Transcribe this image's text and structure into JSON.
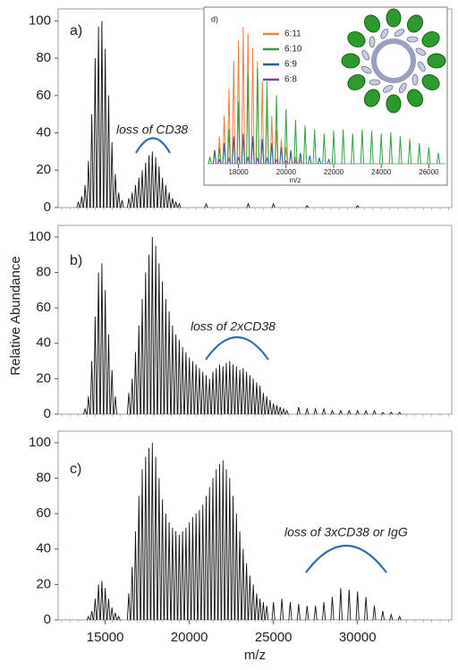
{
  "chart_data": [
    {
      "type": "spectrum",
      "panel_label": "a)",
      "annotation": "loss of CD38",
      "color": "#111111",
      "xlim": [
        12200,
        35600
      ],
      "ylim": [
        0,
        104
      ],
      "yticks": [
        0,
        20,
        40,
        60,
        80,
        100
      ],
      "x": [
        13400,
        13600,
        13800,
        14000,
        14200,
        14400,
        14600,
        14800,
        15000,
        15200,
        15400,
        15600,
        15800,
        16000,
        16400,
        16600,
        16800,
        17000,
        17200,
        17400,
        17600,
        17800,
        18000,
        18200,
        18400,
        18600,
        18800,
        19000,
        19200,
        19400,
        21000,
        23500,
        25000,
        27000,
        30000
      ],
      "values": [
        3,
        6,
        12,
        25,
        50,
        80,
        97,
        100,
        85,
        60,
        35,
        18,
        8,
        4,
        5,
        8,
        12,
        16,
        20,
        24,
        28,
        30,
        27,
        22,
        16,
        12,
        8,
        5,
        3,
        2,
        2,
        2,
        2,
        1,
        1
      ]
    },
    {
      "type": "spectrum",
      "panel_label": "b)",
      "annotation": "loss of 2xCD38",
      "y_label": "Relative Abundance",
      "color": "#111111",
      "xlim": [
        12200,
        35600
      ],
      "ylim": [
        0,
        104
      ],
      "yticks": [
        0,
        20,
        40,
        60,
        80,
        100
      ],
      "x": [
        13800,
        14000,
        14200,
        14400,
        14600,
        14800,
        15000,
        15200,
        15400,
        15600,
        16400,
        16600,
        16800,
        17000,
        17200,
        17400,
        17600,
        17800,
        18000,
        18200,
        18400,
        18600,
        18800,
        19000,
        19200,
        19400,
        19600,
        19800,
        20000,
        20200,
        20400,
        20600,
        20800,
        21000,
        21200,
        21400,
        21600,
        21800,
        22000,
        22200,
        22400,
        22600,
        22800,
        23000,
        23200,
        23400,
        23600,
        23800,
        24000,
        24200,
        24400,
        24600,
        24800,
        25000,
        25200,
        25400,
        25600,
        25800,
        26500,
        27000,
        27500,
        28000,
        28500,
        29000,
        29500,
        30000,
        30500,
        31000,
        31500,
        32000,
        32500
      ],
      "values": [
        3,
        10,
        30,
        55,
        80,
        85,
        70,
        45,
        25,
        10,
        12,
        20,
        35,
        50,
        65,
        80,
        90,
        100,
        95,
        85,
        75,
        65,
        58,
        50,
        45,
        42,
        38,
        35,
        32,
        30,
        28,
        26,
        24,
        22,
        20,
        24,
        26,
        28,
        27,
        29,
        30,
        28,
        27,
        25,
        26,
        24,
        22,
        20,
        18,
        16,
        12,
        10,
        8,
        6,
        5,
        4,
        3,
        2,
        4,
        3,
        3,
        3,
        2,
        2,
        2,
        2,
        2,
        2,
        1,
        1,
        1
      ]
    },
    {
      "type": "spectrum",
      "panel_label": "c)",
      "annotation": "loss of 3xCD38 or IgG",
      "x_label": "m/z",
      "color": "#111111",
      "xlim": [
        12200,
        35600
      ],
      "ylim": [
        0,
        104
      ],
      "yticks": [
        0,
        20,
        40,
        60,
        80,
        100
      ],
      "xticks": [
        15000,
        20000,
        25000,
        30000
      ],
      "x": [
        14000,
        14200,
        14400,
        14600,
        14800,
        15000,
        15200,
        15400,
        15600,
        15800,
        16400,
        16600,
        16800,
        17000,
        17200,
        17400,
        17600,
        17800,
        18000,
        18200,
        18400,
        18600,
        18800,
        19000,
        19200,
        19400,
        19600,
        19800,
        20000,
        20200,
        20400,
        20600,
        20800,
        21000,
        21200,
        21400,
        21600,
        21800,
        22000,
        22200,
        22400,
        22600,
        22800,
        23000,
        23200,
        23400,
        23600,
        23800,
        24000,
        24200,
        24400,
        24600,
        25000,
        25500,
        26000,
        26500,
        27000,
        27500,
        28000,
        28500,
        29000,
        29500,
        30000,
        30500,
        31000,
        31500,
        32000,
        32500
      ],
      "values": [
        2,
        5,
        12,
        20,
        22,
        18,
        12,
        7,
        4,
        2,
        15,
        30,
        50,
        70,
        85,
        92,
        97,
        100,
        92,
        80,
        68,
        60,
        55,
        52,
        50,
        48,
        50,
        52,
        55,
        58,
        60,
        62,
        65,
        70,
        75,
        80,
        85,
        88,
        90,
        85,
        80,
        70,
        60,
        50,
        40,
        32,
        25,
        20,
        15,
        12,
        10,
        8,
        10,
        12,
        10,
        9,
        8,
        8,
        10,
        13,
        18,
        17,
        16,
        13,
        8,
        5,
        3,
        2
      ]
    },
    {
      "type": "spectrum",
      "panel_label": "d)",
      "x_label": "m/z",
      "xlim": [
        16700,
        26700
      ],
      "ylim": [
        0,
        100
      ],
      "xticks": [
        18000,
        20000,
        22000,
        24000,
        26000
      ],
      "series": [
        {
          "name": "6:11",
          "color": "#f08040",
          "x": [
            16800,
            17000,
            17200,
            17400,
            17600,
            17800,
            18000,
            18200,
            18400,
            18600,
            18800,
            19000,
            19200,
            19400,
            19600,
            19800,
            20000,
            20200,
            20400,
            20600
          ],
          "values": [
            5,
            10,
            20,
            35,
            55,
            75,
            90,
            100,
            95,
            85,
            75,
            60,
            45,
            35,
            25,
            18,
            12,
            8,
            5,
            3
          ]
        },
        {
          "name": "6:10",
          "color": "#30a040",
          "x": [
            16800,
            17200,
            17600,
            18000,
            18400,
            18800,
            19200,
            19600,
            20000,
            20400,
            20800,
            21200,
            21600,
            22000,
            22400,
            22800,
            23200,
            23600,
            24000,
            24400,
            24800,
            25200,
            25600,
            26000,
            26400
          ],
          "values": [
            5,
            12,
            25,
            45,
            65,
            70,
            60,
            50,
            40,
            32,
            28,
            25,
            22,
            24,
            25,
            22,
            25,
            24,
            22,
            23,
            20,
            18,
            15,
            12,
            8
          ]
        },
        {
          "name": "6:9",
          "color": "#2060a0",
          "x": [
            17000,
            17400,
            17800,
            18200,
            18600,
            19000,
            19400,
            19800,
            20200,
            20600,
            21000,
            21400,
            21800
          ],
          "values": [
            10,
            15,
            20,
            22,
            20,
            18,
            15,
            12,
            10,
            8,
            6,
            4,
            3
          ]
        },
        {
          "name": "6:8",
          "color": "#8040a0",
          "x": [
            17200,
            17600,
            18000,
            18400,
            18800,
            19200,
            19600,
            20000,
            20400
          ],
          "values": [
            3,
            4,
            5,
            5,
            4,
            4,
            3,
            2,
            2
          ]
        }
      ]
    }
  ]
}
